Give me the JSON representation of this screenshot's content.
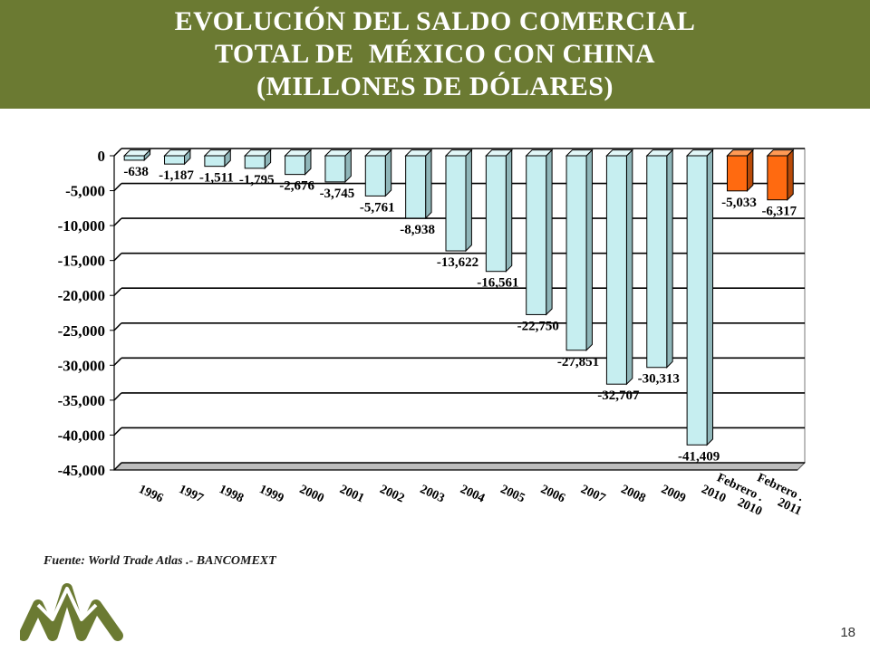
{
  "header": {
    "title_line1": "EVOLUCIÓN DEL SALDO COMERCIAL",
    "title_line2": "TOTAL DE  MÉXICO CON CHINA",
    "title_line3": "(MILLONES DE DÓLARES)"
  },
  "chart_data": {
    "type": "bar",
    "categories": [
      "1996",
      "1997",
      "1998",
      "1999",
      "2000",
      "2001",
      "2002",
      "2003",
      "2004",
      "2005",
      "2006",
      "2007",
      "2008",
      "2009",
      "2010",
      "Febrero . 2010",
      "Febrero . 2011"
    ],
    "values": [
      -638,
      -1187,
      -1511,
      -1795,
      -2676,
      -3745,
      -5761,
      -8938,
      -13622,
      -16561,
      -22750,
      -27851,
      -32707,
      -30313,
      -41409,
      -5033,
      -6317
    ],
    "value_labels": [
      "-638",
      "-1,187",
      "-1,511",
      "-1,795",
      "-2,676",
      "-3,745",
      "-5,761",
      "-8,938",
      "-13,622",
      "-16,561",
      "-22,750",
      "-27,851",
      "-32,707",
      "-30,313",
      "-41,409",
      "-5,033",
      "-6,317"
    ],
    "ylim": [
      -45000,
      0
    ],
    "yticks": [
      0,
      -5000,
      -10000,
      -15000,
      -20000,
      -25000,
      -30000,
      -35000,
      -40000,
      -45000
    ],
    "ytick_labels": [
      "0",
      "-5,000",
      "-10,000",
      "-15,000",
      "-20,000",
      "-25,000",
      "-30,000",
      "-35,000",
      "-40,000",
      "-45,000"
    ],
    "grid": true,
    "colors": {
      "annual": "#c6eef0",
      "partial_year": "#ff6a10"
    }
  },
  "footer": {
    "source": "Fuente:  World Trade Atlas .- BANCOMEXT",
    "page_number": "18"
  }
}
